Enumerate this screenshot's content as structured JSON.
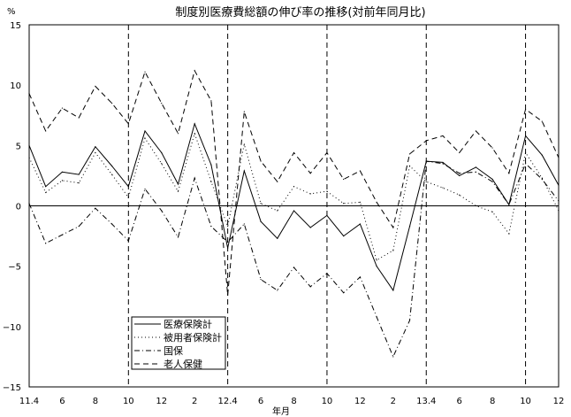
{
  "chart_data": {
    "type": "line",
    "title": "制度別医療費総額の伸び率の推移(対前年同月比)",
    "ylabel": "%",
    "xlabel": "年月",
    "ylim": [
      -15,
      15
    ],
    "y_ticks": [
      15,
      10,
      5,
      0,
      -5,
      -10,
      -15
    ],
    "y_tick_labels": [
      "15",
      "10",
      "5",
      "0",
      "−5",
      "−10",
      "−15"
    ],
    "categories": [
      "11.4",
      "",
      "6",
      "",
      "8",
      "",
      "10",
      "",
      "12",
      "",
      "2",
      "",
      "12.4",
      "",
      "6",
      "",
      "8",
      "",
      "10",
      "",
      "12",
      "",
      "2",
      "",
      "13.4",
      "",
      "6",
      "",
      "8",
      "",
      "10",
      "",
      "12"
    ],
    "fiscal_year_markers": [
      "10",
      "12.4",
      "10",
      "13.4",
      "10"
    ],
    "zero_line": true,
    "grid": false,
    "legend_position": "bottom-left",
    "series": [
      {
        "name": "医療保険計",
        "style": "solid",
        "values": [
          5.0,
          1.6,
          2.8,
          2.6,
          4.9,
          3.3,
          1.6,
          6.2,
          4.4,
          1.8,
          6.8,
          3.4,
          -3.5,
          2.9,
          -1.3,
          -2.7,
          -0.4,
          -1.8,
          -0.8,
          -2.5,
          -1.5,
          -5.0,
          -7.0,
          -1.7,
          3.7,
          3.6,
          2.5,
          3.2,
          2.2,
          0.1,
          5.8,
          4.2,
          1.7
        ]
      },
      {
        "name": "被用者保険計",
        "style": "dotted",
        "values": [
          4.0,
          1.1,
          2.1,
          1.9,
          4.4,
          2.6,
          0.7,
          5.6,
          3.5,
          1.2,
          6.0,
          2.0,
          -1.7,
          5.1,
          0.2,
          -0.4,
          1.6,
          1.0,
          1.2,
          0.2,
          0.3,
          -4.5,
          -3.7,
          3.3,
          2.0,
          1.5,
          0.9,
          0.0,
          -0.5,
          -2.3,
          4.4,
          2.3,
          -0.4
        ]
      },
      {
        "name": "国保",
        "style": "dash-dot",
        "values": [
          0.2,
          -3.1,
          -2.4,
          -1.7,
          -0.2,
          -1.5,
          -2.9,
          1.4,
          -0.4,
          -2.6,
          2.3,
          -1.7,
          -3.0,
          -1.5,
          -6.1,
          -7.0,
          -5.1,
          -6.7,
          -5.6,
          -7.2,
          -5.9,
          -9.2,
          -12.5,
          -9.5,
          3.7,
          3.5,
          2.7,
          2.8,
          2.0,
          0.1,
          3.5,
          2.2,
          0.4
        ]
      },
      {
        "name": "老人保健",
        "style": "dashed",
        "values": [
          9.3,
          6.2,
          8.1,
          7.3,
          9.9,
          8.5,
          6.8,
          11.1,
          8.5,
          6.0,
          11.2,
          8.7,
          -7.4,
          7.8,
          3.7,
          2.0,
          4.4,
          2.7,
          4.4,
          2.2,
          2.9,
          0.3,
          -1.8,
          4.3,
          5.4,
          5.8,
          4.4,
          6.2,
          4.8,
          2.7,
          8.0,
          7.0,
          4.0
        ]
      }
    ],
    "colors": {
      "line": "#000000",
      "background": "#ffffff"
    }
  }
}
